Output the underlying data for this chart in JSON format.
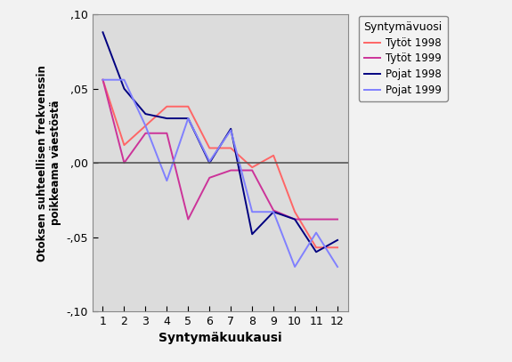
{
  "months": [
    1,
    2,
    3,
    4,
    5,
    6,
    7,
    8,
    9,
    10,
    11,
    12
  ],
  "tytot_1998": [
    0.056,
    0.012,
    0.025,
    0.038,
    0.038,
    0.01,
    0.01,
    -0.003,
    0.005,
    -0.033,
    -0.057,
    -0.057
  ],
  "tytot_1999": [
    0.056,
    0.0,
    0.02,
    0.02,
    -0.038,
    -0.01,
    -0.005,
    -0.005,
    -0.032,
    -0.038,
    -0.038,
    -0.038
  ],
  "pojat_1998": [
    0.088,
    0.05,
    0.033,
    0.03,
    0.03,
    0.0,
    0.023,
    -0.048,
    -0.033,
    -0.038,
    -0.06,
    -0.052
  ],
  "pojat_1999": [
    0.056,
    0.056,
    0.025,
    -0.012,
    0.03,
    0.001,
    0.022,
    -0.033,
    -0.033,
    -0.07,
    -0.047,
    -0.07
  ],
  "color_tytot_1998": "#FF6666",
  "color_tytot_1999": "#CC3399",
  "color_pojat_1998": "#000080",
  "color_pojat_1999": "#8080FF",
  "legend_title": "Syntymävuosi",
  "legend_labels": [
    "Tytöt 1998",
    "Tytöt 1999",
    "Pojat 1998",
    "Pojat 1999"
  ],
  "xlabel": "Syntymäkuukausi",
  "ylabel": "Otoksen suhteellisen frekvenssin\npoikkeama väestöstä",
  "ylim": [
    -0.1,
    0.1
  ],
  "xlim": [
    0.5,
    12.5
  ],
  "yticks": [
    -0.1,
    -0.05,
    0.0,
    0.05,
    0.1
  ],
  "ytick_labels": [
    "-,10",
    "-,05",
    ",00",
    ",05",
    ",10"
  ],
  "xticks": [
    1,
    2,
    3,
    4,
    5,
    6,
    7,
    8,
    9,
    10,
    11,
    12
  ],
  "bg_color": "#DCDCDC",
  "fig_color": "#F2F2F2",
  "zero_line_color": "#555555",
  "linewidth": 1.4
}
